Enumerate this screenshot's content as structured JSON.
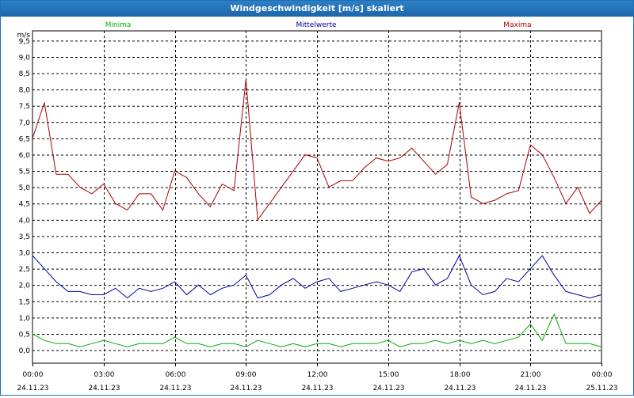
{
  "window": {
    "title": "Windgeschwindigkeit [m/s] skaliert"
  },
  "chart_data": {
    "type": "line",
    "title": "Windgeschwindigkeit [m/s] skaliert",
    "ylabel": "m/s",
    "xlabel": "",
    "ylim": [
      -0.4,
      9.8
    ],
    "xlim": [
      "24.11.23 00:00",
      "25.11.23 00:00"
    ],
    "yticks": [
      "0,0",
      "0,5",
      "1,0",
      "1,5",
      "2,0",
      "2,5",
      "3,0",
      "3,5",
      "4,0",
      "4,5",
      "5,0",
      "5,5",
      "6,0",
      "6,5",
      "7,0",
      "7,5",
      "8,0",
      "8,5",
      "9,0",
      "9,5"
    ],
    "xticks": [
      {
        "time": "00:00",
        "date": "24.11.23"
      },
      {
        "time": "03:00",
        "date": "24.11.23"
      },
      {
        "time": "06:00",
        "date": "24.11.23"
      },
      {
        "time": "09:00",
        "date": "24.11.23"
      },
      {
        "time": "12:00",
        "date": "24.11.23"
      },
      {
        "time": "15:00",
        "date": "24.11.23"
      },
      {
        "time": "18:00",
        "date": "24.11.23"
      },
      {
        "time": "21:00",
        "date": "24.11.23"
      },
      {
        "time": "00:00",
        "date": "25.11.23"
      }
    ],
    "x_hours": [
      0,
      0.5,
      1,
      1.5,
      2,
      2.5,
      3,
      3.5,
      4,
      4.5,
      5,
      5.5,
      6,
      6.5,
      7,
      7.5,
      8,
      8.5,
      9,
      9.5,
      10,
      10.5,
      11,
      11.5,
      12,
      12.5,
      13,
      13.5,
      14,
      14.5,
      15,
      15.5,
      16,
      16.5,
      17,
      17.5,
      18,
      18.5,
      19,
      19.5,
      20,
      20.5,
      21,
      21.5,
      22,
      22.5,
      23,
      23.5,
      24
    ],
    "grid": true,
    "legend_position": "top",
    "series": [
      {
        "name": "Minima",
        "color": "#00b000",
        "values": [
          0.5,
          0.3,
          0.2,
          0.2,
          0.1,
          0.2,
          0.3,
          0.2,
          0.1,
          0.2,
          0.2,
          0.2,
          0.4,
          0.2,
          0.2,
          0.1,
          0.2,
          0.2,
          0.1,
          0.3,
          0.2,
          0.1,
          0.2,
          0.1,
          0.2,
          0.2,
          0.1,
          0.2,
          0.2,
          0.2,
          0.3,
          0.1,
          0.2,
          0.2,
          0.3,
          0.2,
          0.3,
          0.2,
          0.3,
          0.2,
          0.3,
          0.4,
          0.8,
          0.3,
          1.1,
          0.2,
          0.2,
          0.2,
          0.1
        ]
      },
      {
        "name": "Mittelwerte",
        "color": "#0000a0",
        "values": [
          2.9,
          2.5,
          2.1,
          1.8,
          1.8,
          1.7,
          1.7,
          1.9,
          1.6,
          1.9,
          1.8,
          1.9,
          2.1,
          1.7,
          2.0,
          1.7,
          1.9,
          2.0,
          2.3,
          1.6,
          1.7,
          2.0,
          2.2,
          1.9,
          2.1,
          2.2,
          1.8,
          1.9,
          2.0,
          2.1,
          2.0,
          1.8,
          2.4,
          2.5,
          2.0,
          2.2,
          2.9,
          2.0,
          1.7,
          1.8,
          2.2,
          2.1,
          2.5,
          2.9,
          2.3,
          1.8,
          1.7,
          1.6,
          1.7
        ]
      },
      {
        "name": "Maxima",
        "color": "#aa0000",
        "values": [
          6.5,
          7.6,
          5.4,
          5.4,
          5.0,
          4.8,
          5.1,
          4.5,
          4.3,
          4.8,
          4.8,
          4.3,
          5.5,
          5.3,
          4.8,
          4.4,
          5.1,
          4.9,
          8.3,
          4.0,
          4.5,
          5.0,
          5.5,
          6.0,
          5.9,
          5.0,
          5.2,
          5.2,
          5.6,
          5.9,
          5.8,
          5.9,
          6.2,
          5.8,
          5.4,
          5.7,
          7.6,
          4.7,
          4.5,
          4.6,
          4.8,
          4.9,
          6.3,
          6.0,
          5.3,
          4.5,
          5.0,
          4.2,
          4.6
        ]
      }
    ]
  }
}
